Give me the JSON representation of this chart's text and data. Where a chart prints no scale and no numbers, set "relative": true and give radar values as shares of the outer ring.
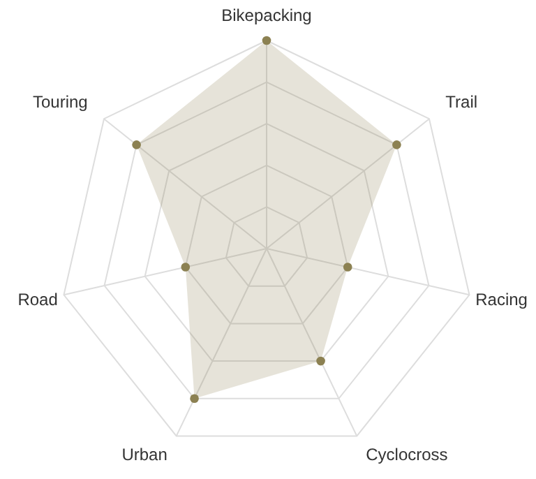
{
  "chart_data": {
    "type": "radar",
    "relative": true,
    "grid": true,
    "marker": "circle",
    "categories": [
      "Bikepacking",
      "Trail",
      "Racing",
      "Cyclocross",
      "Urban",
      "Road",
      "Touring"
    ],
    "series": [
      {
        "color": "#8c8152",
        "values": [
          1.0,
          0.8,
          0.4,
          0.6,
          0.8,
          0.4,
          0.8
        ]
      }
    ]
  }
}
